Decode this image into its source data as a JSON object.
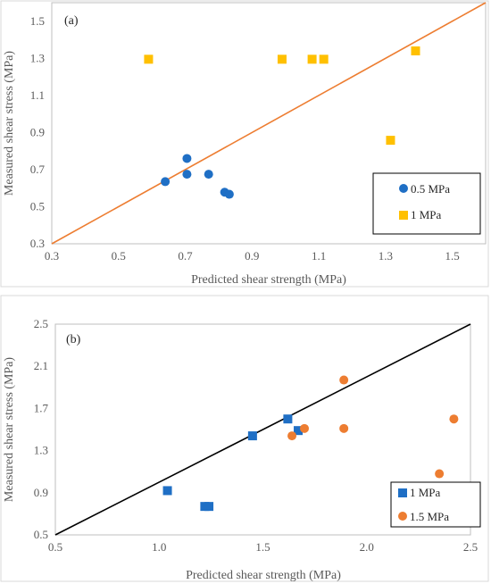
{
  "chart_data": [
    {
      "type": "scatter",
      "panel_label": "(a)",
      "xlabel": "Predicted shear strength (MPa)",
      "ylabel": "Measured shear stress (MPa)",
      "xlim": [
        0.3,
        1.6
      ],
      "ylim": [
        0.3,
        1.6
      ],
      "xticks": [
        "0.3",
        "0.5",
        "0.7",
        "0.9",
        "1.1",
        "1.3",
        "1.5"
      ],
      "yticks": [
        "0.3",
        "0.5",
        "0.7",
        "0.9",
        "1.1",
        "1.3",
        "1.5"
      ],
      "grid": false,
      "legend_position": "bottom-right",
      "reference_line": {
        "from": [
          0.3,
          0.3
        ],
        "to": [
          1.6,
          1.6
        ],
        "color": "#ED7D31"
      },
      "series": [
        {
          "name": "0.5 MPa",
          "marker": "circle",
          "color": "#1F6FC5",
          "points": [
            [
              0.64,
              0.635
            ],
            [
              0.705,
              0.76
            ],
            [
              0.705,
              0.675
            ],
            [
              0.77,
              0.675
            ],
            [
              0.818,
              0.578
            ],
            [
              0.832,
              0.567
            ]
          ]
        },
        {
          "name": "1 MPa",
          "marker": "square",
          "color": "#FFC000",
          "points": [
            [
              0.59,
              1.295
            ],
            [
              0.99,
              1.295
            ],
            [
              1.08,
              1.295
            ],
            [
              1.115,
              1.295
            ],
            [
              1.315,
              0.858
            ],
            [
              1.39,
              1.34
            ]
          ]
        }
      ]
    },
    {
      "type": "scatter",
      "panel_label": "(b)",
      "xlabel": "Predicted shear strength (MPa)",
      "ylabel": "Measured shear stress (MPa)",
      "xlim": [
        0.5,
        2.5
      ],
      "ylim": [
        0.5,
        2.5
      ],
      "xticks": [
        "0.5",
        "1.0",
        "1.5",
        "2.0",
        "2.5"
      ],
      "yticks": [
        "0.5",
        "0.9",
        "1.3",
        "1.7",
        "2.1",
        "2.5"
      ],
      "grid": false,
      "legend_position": "bottom-right",
      "reference_line": {
        "from": [
          0.5,
          0.5
        ],
        "to": [
          2.5,
          2.5
        ],
        "color": "#000000"
      },
      "series": [
        {
          "name": "1 MPa",
          "marker": "square",
          "color": "#1F6FC5",
          "points": [
            [
              1.04,
              0.92
            ],
            [
              1.22,
              0.77
            ],
            [
              1.24,
              0.77
            ],
            [
              1.45,
              1.44
            ],
            [
              1.62,
              1.6
            ],
            [
              1.67,
              1.49
            ]
          ]
        },
        {
          "name": "1.5 MPa",
          "marker": "circle",
          "color": "#ED7D31",
          "points": [
            [
              1.64,
              1.44
            ],
            [
              1.7,
              1.51
            ],
            [
              1.89,
              1.97
            ],
            [
              1.89,
              1.51
            ],
            [
              2.35,
              1.08
            ],
            [
              2.42,
              1.6
            ]
          ]
        }
      ]
    }
  ]
}
